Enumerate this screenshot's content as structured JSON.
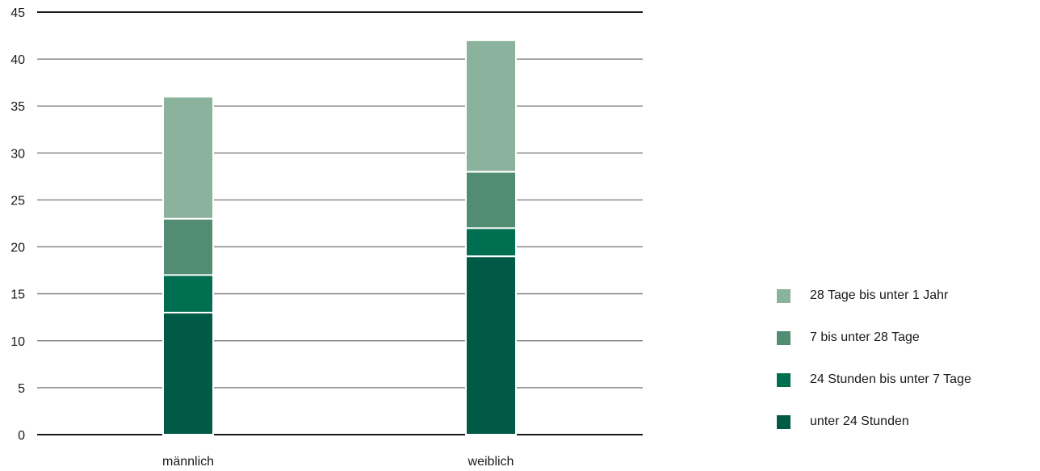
{
  "chart_data": {
    "type": "bar",
    "stacked": true,
    "categories": [
      "männlich",
      "weiblich"
    ],
    "series": [
      {
        "name": "unter 24 Stunden",
        "values": [
          13,
          19
        ],
        "color": "#005a46"
      },
      {
        "name": "24 Stunden bis unter 7 Tage",
        "values": [
          4,
          3
        ],
        "color": "#006e50"
      },
      {
        "name": "7 bis unter 28 Tage",
        "values": [
          6,
          6
        ],
        "color": "#528c72"
      },
      {
        "name": "28 Tage bis unter 1 Jahr",
        "values": [
          13,
          14
        ],
        "color": "#8bb29c"
      }
    ],
    "legend_order": [
      3,
      2,
      1,
      0
    ],
    "yticks": [
      "0",
      "5",
      "10",
      "15",
      "20",
      "25",
      "30",
      "35",
      "40",
      "45"
    ],
    "ylim": [
      0,
      45
    ],
    "grid": true,
    "legend_position": "right"
  }
}
